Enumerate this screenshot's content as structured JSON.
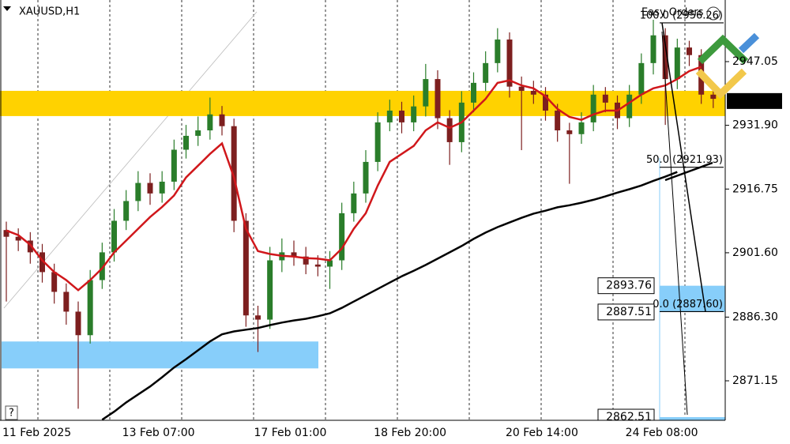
{
  "chart_data": {
    "type": "candlestick",
    "title": "XAUUSD,H1",
    "overlay_text": "Easy Orders",
    "help_button": "?",
    "categories": [
      "11 Feb 2025",
      null,
      null,
      null,
      null,
      null,
      null,
      null,
      null,
      null,
      "13 Feb 07:00",
      null,
      null,
      null,
      null,
      null,
      null,
      null,
      null,
      null,
      null,
      "17 Feb 01:00",
      null,
      null,
      null,
      null,
      null,
      null,
      null,
      null,
      null,
      "18 Feb 20:00",
      null,
      null,
      null,
      null,
      null,
      null,
      null,
      null,
      null,
      null,
      "20 Feb 14:00",
      null,
      null,
      null,
      null,
      null,
      null,
      null,
      null,
      null,
      "24 Feb 08:00",
      null,
      null,
      null,
      null,
      null,
      null,
      null
    ],
    "open": [
      2907.0,
      2905.4,
      2904.5,
      2901.7,
      2897.0,
      2892.3,
      2887.6,
      2882.0,
      2895.1,
      2901.7,
      2909.2,
      2913.9,
      2918.2,
      2915.7,
      2918.5,
      2926.1,
      2929.4,
      2930.7,
      2934.5,
      2931.7,
      2909.2,
      2886.7,
      2885.7,
      2899.8,
      2901.7,
      2900.7,
      2898.8,
      2898.3,
      2899.8,
      2911.0,
      2915.7,
      2923.2,
      2932.6,
      2935.4,
      2932.6,
      2936.4,
      2942.9,
      2933.6,
      2927.9,
      2937.3,
      2942.0,
      2946.7,
      2952.3,
      2941.1,
      2940.1,
      2939.2,
      2935.4,
      2930.7,
      2929.8,
      2932.6,
      2939.2,
      2937.3,
      2933.6,
      2939.2,
      2946.7,
      2953.3,
      2942.9,
      2950.4,
      2948.6,
      2939.2
    ],
    "high": [
      2909.0,
      2907.4,
      2906.5,
      2903.7,
      2899.0,
      2894.3,
      2890.0,
      2897.5,
      2904.0,
      2912.0,
      2916.5,
      2921.0,
      2920.5,
      2921.0,
      2928.5,
      2932.0,
      2934.0,
      2938.5,
      2936.5,
      2933.5,
      2911.0,
      2889.0,
      2903.0,
      2905.0,
      2904.5,
      2903.0,
      2901.0,
      2902.0,
      2913.5,
      2918.5,
      2926.0,
      2935.0,
      2938.0,
      2937.5,
      2939.0,
      2946.5,
      2945.0,
      2935.5,
      2940.0,
      2944.5,
      2949.5,
      2955.0,
      2954.0,
      2943.5,
      2942.5,
      2941.0,
      2937.0,
      2932.5,
      2935.0,
      2941.5,
      2941.0,
      2939.0,
      2941.5,
      2949.0,
      2957.0,
      2955.0,
      2952.5,
      2952.0,
      2950.0,
      2940.5
    ],
    "low": [
      2890.0,
      2902.0,
      2899.0,
      2894.5,
      2889.5,
      2884.5,
      2864.5,
      2880.0,
      2893.0,
      2899.5,
      2907.0,
      2911.5,
      2913.0,
      2913.5,
      2916.5,
      2924.0,
      2927.0,
      2928.5,
      2929.5,
      2906.5,
      2884.0,
      2878.0,
      2883.5,
      2897.0,
      2898.5,
      2896.5,
      2896.0,
      2893.0,
      2897.5,
      2909.0,
      2913.5,
      2921.0,
      2930.5,
      2930.0,
      2930.5,
      2934.0,
      2931.0,
      2922.5,
      2925.5,
      2935.0,
      2940.0,
      2944.5,
      2938.5,
      2926.0,
      2937.0,
      2933.0,
      2928.0,
      2918.0,
      2927.5,
      2930.5,
      2935.0,
      2931.0,
      2931.5,
      2937.0,
      2944.0,
      2932.0,
      2940.5,
      2946.0,
      2937.0,
      2936.0
    ],
    "close": [
      2905.4,
      2904.5,
      2901.7,
      2897.0,
      2892.3,
      2887.6,
      2882.0,
      2895.1,
      2901.7,
      2909.2,
      2913.9,
      2918.2,
      2915.7,
      2918.5,
      2926.1,
      2929.4,
      2930.7,
      2934.5,
      2931.7,
      2909.2,
      2886.7,
      2885.7,
      2899.8,
      2901.7,
      2900.7,
      2898.8,
      2898.3,
      2899.8,
      2911.0,
      2915.7,
      2923.2,
      2932.6,
      2935.4,
      2932.6,
      2936.4,
      2942.9,
      2933.6,
      2927.9,
      2937.3,
      2942.0,
      2946.7,
      2952.3,
      2941.1,
      2940.1,
      2939.2,
      2935.4,
      2930.7,
      2929.8,
      2932.6,
      2939.2,
      2937.3,
      2933.6,
      2939.2,
      2946.7,
      2953.3,
      2942.9,
      2950.4,
      2948.6,
      2939.2,
      2938.2
    ],
    "up_color": "#2a7d2a",
    "down_color": "#7d1f1f",
    "series": [
      {
        "color": "#d0171b",
        "values": [
          2906.9,
          2905.8,
          2903.5,
          2899.8,
          2897.0,
          2895.1,
          2892.7,
          2895.1,
          2897.9,
          2901.7,
          2904.5,
          2907.3,
          2910.1,
          2912.5,
          2915.2,
          2919.5,
          2922.3,
          2925.1,
          2927.6,
          2919.5,
          2907.3,
          2902.0,
          2901.3,
          2900.9,
          2900.7,
          2900.3,
          2900.2,
          2899.8,
          2902.6,
          2907.3,
          2911.0,
          2917.6,
          2923.2,
          2925.1,
          2927.0,
          2930.7,
          2932.6,
          2931.3,
          2932.6,
          2935.4,
          2938.2,
          2942.0,
          2942.6,
          2941.4,
          2940.7,
          2938.8,
          2935.8,
          2933.9,
          2933.2,
          2934.5,
          2935.4,
          2935.4,
          2937.3,
          2939.2,
          2940.7,
          2941.4,
          2942.9,
          2944.8,
          2945.8,
          null
        ]
      },
      {
        "color": "#000000",
        "values": [
          null,
          null,
          null,
          null,
          null,
          null,
          null,
          null,
          2861.9,
          2863.8,
          2866.0,
          2867.9,
          2869.8,
          2872.0,
          2874.3,
          2876.3,
          2878.4,
          2880.5,
          2882.2,
          2882.9,
          2883.3,
          2883.7,
          2884.4,
          2885.0,
          2885.5,
          2885.9,
          2886.5,
          2887.2,
          2888.5,
          2890.0,
          2891.5,
          2893.0,
          2894.5,
          2896.0,
          2897.3,
          2898.7,
          2900.2,
          2901.7,
          2903.2,
          2904.9,
          2906.4,
          2907.7,
          2908.8,
          2909.9,
          2910.9,
          2911.6,
          2912.4,
          2912.9,
          2913.5,
          2914.2,
          2915.0,
          2915.9,
          2916.7,
          2917.6,
          2918.7,
          2919.7,
          2920.8,
          null,
          null,
          null
        ]
      }
    ],
    "ylim": [
      2861.76,
      2961.7
    ],
    "yticks": [
      2947.05,
      {
        "value": 2931.9,
        "label": "2931.90"
      },
      2916.75,
      {
        "value": 2901.6,
        "label": "2901.60"
      },
      {
        "value": 2886.3,
        "label": "2886.30"
      },
      2871.15
    ],
    "last_price": 2937.68,
    "zones": [
      {
        "from": 2934.1,
        "to": 2940.1,
        "color": "#ffd200"
      },
      {
        "from": 2874.1,
        "to": 2880.5,
        "color": "#87cefa"
      },
      {
        "from": 2887.51,
        "to": 2893.76,
        "color": "#87cefa"
      }
    ],
    "boxed_levels": [
      2893.76,
      2887.51,
      2862.51
    ],
    "fib_levels": [
      {
        "label": "100.0 (2956.26)",
        "value": 2956.26
      },
      {
        "label": "50.0 (2921.93)",
        "value": 2921.93
      },
      {
        "label": "0.0 (2887.60)",
        "value": 2887.6
      }
    ]
  }
}
